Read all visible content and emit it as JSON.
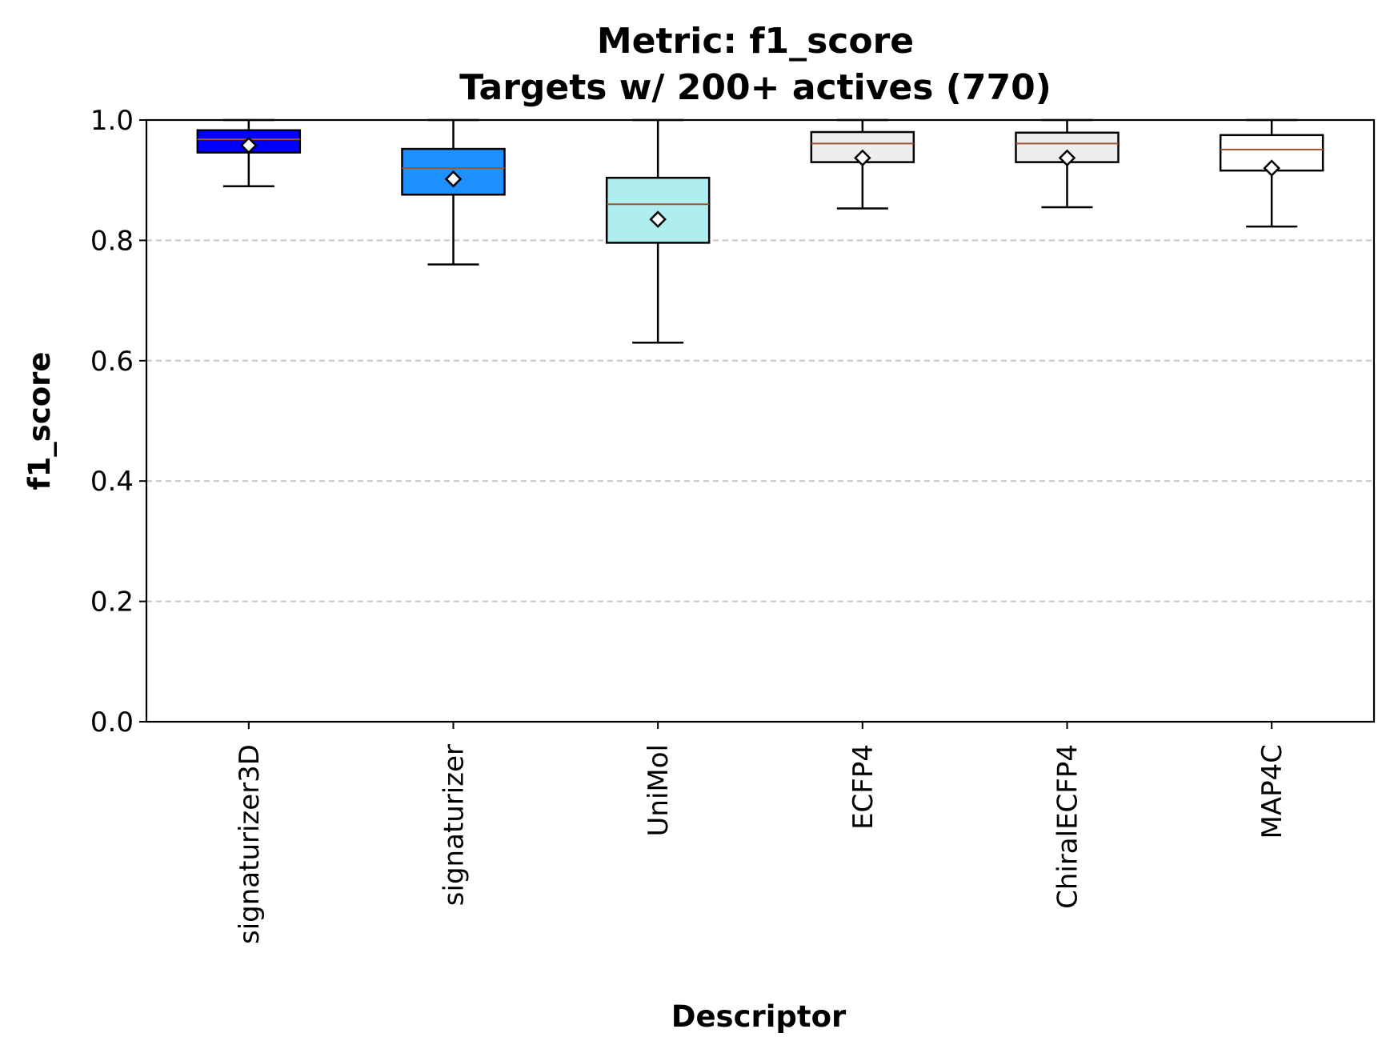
{
  "chart_data": {
    "type": "box",
    "title": "Metric: f1_score",
    "subtitle": "Targets w/ 200+ actives (770)",
    "xlabel": "Descriptor",
    "ylabel": "f1_score",
    "ylim": [
      0.0,
      1.0
    ],
    "yticks": [
      "0.0",
      "0.2",
      "0.4",
      "0.6",
      "0.8",
      "1.0"
    ],
    "grid": "horizontal dashed",
    "categories": [
      "signaturizer3D",
      "signaturizer",
      "UniMol",
      "ECFP4",
      "ChiralECFP4",
      "MAP4C"
    ],
    "boxes": [
      {
        "category": "signaturizer3D",
        "whisker_low": 0.89,
        "q1": 0.946,
        "median": 0.968,
        "q3": 0.983,
        "whisker_high": 1.0,
        "mean": 0.958,
        "color": "#0000ff"
      },
      {
        "category": "signaturizer",
        "whisker_low": 0.76,
        "q1": 0.876,
        "median": 0.92,
        "q3": 0.952,
        "whisker_high": 1.0,
        "mean": 0.902,
        "color": "#1e90ff"
      },
      {
        "category": "UniMol",
        "whisker_low": 0.63,
        "q1": 0.796,
        "median": 0.86,
        "q3": 0.904,
        "whisker_high": 1.0,
        "mean": 0.835,
        "color": "#afeeee"
      },
      {
        "category": "ECFP4",
        "whisker_low": 0.853,
        "q1": 0.93,
        "median": 0.961,
        "q3": 0.98,
        "whisker_high": 1.0,
        "mean": 0.937,
        "color": "#eeeeee"
      },
      {
        "category": "ChiralECFP4",
        "whisker_low": 0.855,
        "q1": 0.93,
        "median": 0.961,
        "q3": 0.979,
        "whisker_high": 1.0,
        "mean": 0.937,
        "color": "#eeeeee"
      },
      {
        "category": "MAP4C",
        "whisker_low": 0.823,
        "q1": 0.916,
        "median": 0.951,
        "q3": 0.975,
        "whisker_high": 1.0,
        "mean": 0.92,
        "color": "#ffffff"
      }
    ],
    "median_color": "#a0522d",
    "mean_marker": "diamond"
  }
}
